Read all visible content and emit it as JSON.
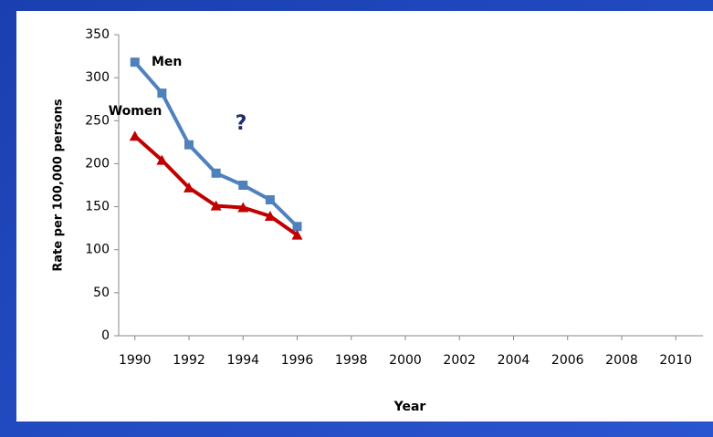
{
  "chart_data": {
    "type": "line",
    "x_label": "Year",
    "y_label": "Rate per 100,000 persons",
    "x": [
      1990,
      1991,
      1992,
      1993,
      1994,
      1995,
      1996
    ],
    "series": [
      {
        "name": "Men",
        "color": "#4f81bd",
        "marker": "square",
        "values": [
          318,
          282,
          222,
          189,
          175,
          158,
          127
        ]
      },
      {
        "name": "Women",
        "color": "#c00000",
        "marker": "triangle",
        "values": [
          232,
          204,
          172,
          151,
          149,
          139,
          117
        ]
      }
    ],
    "annotations": [
      "?"
    ],
    "xlim": [
      1989.4,
      2010.6
    ],
    "ylim": [
      0,
      350
    ],
    "xticks": [
      1990,
      1992,
      1994,
      1996,
      1998,
      2000,
      2002,
      2004,
      2006,
      2008,
      2010
    ],
    "yticks": [
      0,
      50,
      100,
      150,
      200,
      250,
      300,
      350
    ],
    "grid": false
  }
}
